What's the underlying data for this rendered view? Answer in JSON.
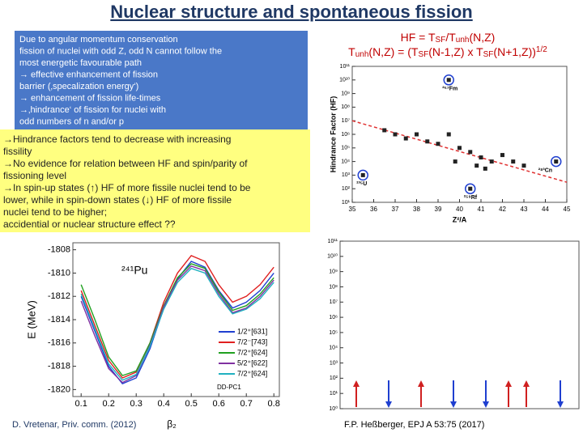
{
  "title": "Nuclear structure and spontaneous fission",
  "blue_box": {
    "lines": [
      "Due to angular momentum conservation",
      "fission of nuclei with odd Z, odd N cannot follow the",
      "most energetic favourable path",
      "→ effective enhancement of fission",
      "   barrier (‚specalization energy‘)",
      "→ enhancement of fission life-times",
      "→‚hindrance‘ of fission for nuclei with",
      "   odd numbers of n and/or p"
    ]
  },
  "formula": {
    "lines": [
      [
        "HF = T",
        {
          "text": "SF",
          "pos": "sub"
        },
        "/T",
        {
          "text": "unh",
          "pos": "sub"
        },
        "(N,Z)"
      ],
      [
        "T",
        {
          "text": "unh",
          "pos": "sub"
        },
        "(N,Z) = (T",
        {
          "text": "SF",
          "pos": "sub"
        },
        "(N-1,Z) x T",
        {
          "text": "SF",
          "pos": "sub"
        },
        "(N+1,Z))",
        {
          "text": "1/2",
          "pos": "sup"
        }
      ]
    ]
  },
  "yellow_box": {
    "lines": [
      "→Hindrance factors tend to decrease with increasing",
      "   fissility",
      "→No evidence for relation between  HF and spin/parity of",
      "   fissioning level",
      "→In spin-up states (↑) HF of more fissile nuclei tend to be",
      "   lower, while in spin-down states (↓) HF of more fissile",
      "   nuclei tend to be higher;",
      "   accidential or nuclear structure effect ??"
    ]
  },
  "chart_data": [
    {
      "type": "scatter",
      "x_label": "Z²/A",
      "y_label": "Hindrance Factor (HF)",
      "log_y": true,
      "color": "#222222",
      "trend_color": "#e03030",
      "x": [
        36.5,
        37,
        37.5,
        38,
        38.5,
        39,
        39.5,
        39.8,
        40,
        40.5,
        40.8,
        41,
        41.2,
        41.5,
        42,
        42.5,
        43,
        39.5,
        44.5,
        35.5,
        40.5
      ],
      "values": [
        2000000,
        1000000,
        500000,
        1000000,
        300000,
        200000,
        1000000,
        10000,
        100000,
        50000,
        5000,
        20000,
        3000,
        10000,
        30000,
        10000,
        5000,
        10000000000,
        10000,
        1000,
        100
      ],
      "trend": {
        "x": [
          35,
          45
        ],
        "values": [
          10000000,
          300
        ]
      },
      "annotations": [
        {
          "text": "²⁵⁷Fm",
          "x": 39.5,
          "y": 10000000000
        },
        {
          "text": "²⁸³Cn",
          "x": 44.5,
          "y": 10000
        },
        {
          "text": "²³⁵U",
          "x": 35.5,
          "y": 1000
        },
        {
          "text": "²⁵⁹Rf",
          "x": 40.5,
          "y": 100
        }
      ],
      "xlim": [
        35,
        45
      ],
      "xticks": [
        35,
        36,
        37,
        38,
        39,
        40,
        41,
        42,
        43,
        44,
        45
      ],
      "ylim": [
        10,
        100000000000
      ],
      "yticks": [
        {
          "value": 10,
          "label": "10¹"
        },
        {
          "value": 100,
          "label": "10²"
        },
        {
          "value": 1000,
          "label": "10³"
        },
        {
          "value": 10000,
          "label": "10⁴"
        },
        {
          "value": 100000,
          "label": "10⁵"
        },
        {
          "value": 1000000,
          "label": "10⁶"
        },
        {
          "value": 10000000,
          "label": "10⁷"
        },
        {
          "value": 100000000,
          "label": "10⁸"
        },
        {
          "value": 1000000000,
          "label": "10⁹"
        },
        {
          "value": 10000000000,
          "label": "10¹⁰"
        },
        {
          "value": 100000000000,
          "label": "10¹¹"
        }
      ]
    },
    {
      "type": "line",
      "y_label": "E (MeV)",
      "x_label": "β₂",
      "annotations": [
        "²⁴¹Pu",
        "DD-PC1"
      ],
      "x": [
        0.1,
        0.15,
        0.2,
        0.25,
        0.3,
        0.35,
        0.4,
        0.45,
        0.5,
        0.55,
        0.6,
        0.65,
        0.7,
        0.75,
        0.8
      ],
      "series": [
        {
          "name": "1/2⁺[631]",
          "color": "#1f3fd0",
          "values": [
            -1812,
            -1815,
            -1818,
            -1819.5,
            -1819,
            -1816.5,
            -1813,
            -1810.5,
            -1809,
            -1809.5,
            -1811.5,
            -1813,
            -1812.5,
            -1811.5,
            -1810
          ]
        },
        {
          "name": "7/2⁻[743]",
          "color": "#e02020",
          "values": [
            -1811.5,
            -1814.5,
            -1817.5,
            -1819,
            -1818.5,
            -1816,
            -1812.5,
            -1810,
            -1808.5,
            -1809,
            -1811,
            -1812.5,
            -1812,
            -1811,
            -1809.5
          ]
        },
        {
          "name": "7/2⁺[624]",
          "color": "#20a020",
          "values": [
            -1811,
            -1814,
            -1817.2,
            -1818.8,
            -1818.4,
            -1816,
            -1812.8,
            -1810.4,
            -1809.2,
            -1809.6,
            -1811.6,
            -1813.2,
            -1812.8,
            -1811.8,
            -1810.4
          ]
        },
        {
          "name": "5/2⁺[622]",
          "color": "#8030a0",
          "values": [
            -1812.4,
            -1815.4,
            -1818.2,
            -1819.4,
            -1818.8,
            -1816.2,
            -1812.9,
            -1810.6,
            -1809.4,
            -1809.8,
            -1811.8,
            -1813.4,
            -1813,
            -1812,
            -1810.6
          ]
        },
        {
          "name": "7/2⁺[624]",
          "color": "#20b0c0",
          "values": [
            -1811.8,
            -1814.8,
            -1817.8,
            -1819.2,
            -1818.7,
            -1816.3,
            -1813.1,
            -1810.8,
            -1809.6,
            -1810,
            -1812,
            -1813.5,
            -1813.1,
            -1812.2,
            -1810.8
          ]
        }
      ],
      "xlim": [
        0.07,
        0.82
      ],
      "xticks": [
        0.1,
        0.2,
        0.3,
        0.4,
        0.5,
        0.6,
        0.7,
        0.8
      ],
      "ylim": [
        -1820.6,
        -1807.4
      ],
      "yticks": [
        -1808,
        -1810,
        -1812,
        -1814,
        -1816,
        -1818,
        -1820
      ]
    },
    {
      "type": "arrows",
      "log_y": true,
      "ylim": [
        1,
        100000000000
      ],
      "yticks": [
        {
          "value": 1,
          "label": "10⁰"
        },
        {
          "value": 10,
          "label": "10¹"
        },
        {
          "value": 100,
          "label": "10²"
        },
        {
          "value": 1000,
          "label": "10³"
        },
        {
          "value": 10000,
          "label": "10⁴"
        },
        {
          "value": 100000,
          "label": "10⁵"
        },
        {
          "value": 1000000,
          "label": "10⁶"
        },
        {
          "value": 10000000,
          "label": "10⁷"
        },
        {
          "value": 100000000,
          "label": "10⁸"
        },
        {
          "value": 1000000000,
          "label": "10⁹"
        },
        {
          "value": 10000000000,
          "label": "10¹⁰"
        },
        {
          "value": 100000000000,
          "label": "10¹¹"
        }
      ]
    }
  ],
  "footer_left": "D. Vretenar, Priv. comm. (2012)",
  "footer_right": "F.P. Heßberger, EPJ A 53:75 (2017)"
}
